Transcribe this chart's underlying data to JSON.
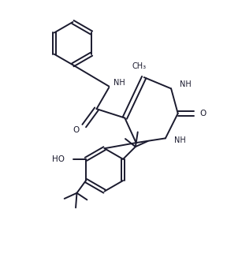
{
  "bg_color": "#ffffff",
  "line_color": "#1a1a2e",
  "line_width": 1.4,
  "fig_width": 2.88,
  "fig_height": 3.45,
  "dpi": 100,
  "xlim": [
    0,
    10
  ],
  "ylim": [
    0,
    12
  ]
}
